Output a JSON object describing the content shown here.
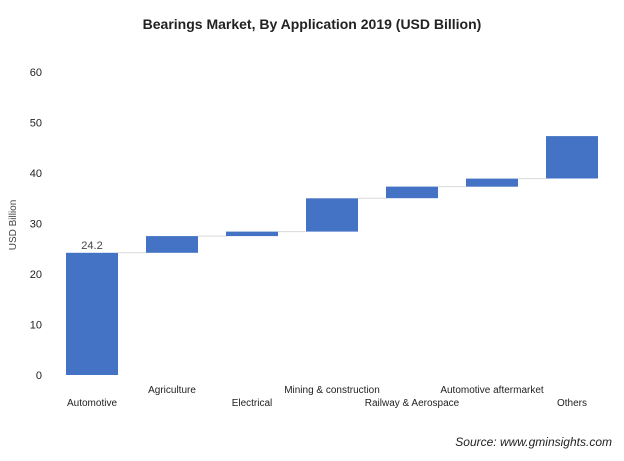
{
  "chart_data": {
    "type": "bar",
    "subtype": "waterfall",
    "title": "Bearings Market, By Application 2019 (USD Billion)",
    "ylabel": "USD Billion",
    "xlabel": "",
    "ylim": [
      0,
      60
    ],
    "yticks": [
      0,
      10,
      20,
      30,
      40,
      50,
      60
    ],
    "grid": false,
    "categories": [
      "Automotive",
      "Agriculture",
      "Electrical",
      "Mining & construction",
      "Railway & Aerospace",
      "Automotive aftermarket",
      "Others"
    ],
    "values": [
      24.2,
      3.3,
      0.9,
      6.6,
      2.3,
      1.6,
      8.4
    ],
    "data_labels": [
      {
        "category": "Automotive",
        "text": "24.2"
      }
    ],
    "source": "Source: www.gminsights.com"
  },
  "colors": {
    "bar": "#4472c4",
    "connector": "#d9d9d9",
    "text": "#222222"
  }
}
